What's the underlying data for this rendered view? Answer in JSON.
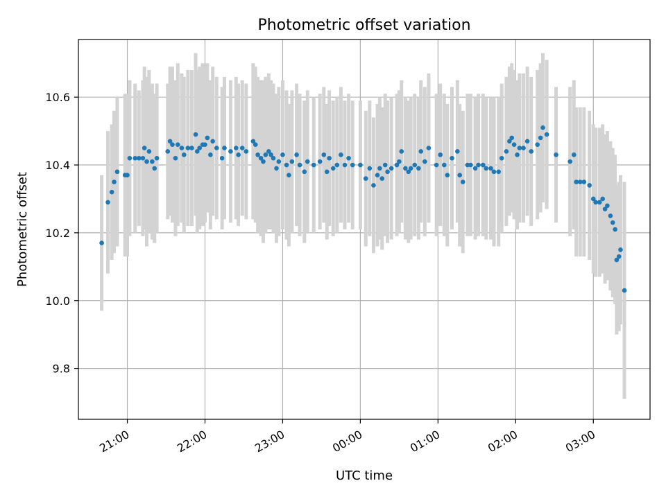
{
  "chart_data": {
    "type": "scatter",
    "title": "Photometric offset variation",
    "xlabel": "UTC time",
    "ylabel": "Photometric offset",
    "x_tick_labels": [
      "21:00",
      "22:00",
      "23:00",
      "00:00",
      "01:00",
      "02:00",
      "03:00"
    ],
    "y_tick_labels": [
      "9.8",
      "10.0",
      "10.2",
      "10.4",
      "10.6"
    ],
    "y_ticks": [
      9.8,
      10.0,
      10.2,
      10.4,
      10.6
    ],
    "ylim": [
      9.65,
      10.77
    ],
    "xlim_hours": [
      20.37,
      27.73
    ],
    "grid": true,
    "point_color": "#1f77b4",
    "errorbar_color": "#d3d3d3",
    "points": [
      [
        20.67,
        10.17,
        0.2
      ],
      [
        20.75,
        10.29,
        0.21
      ],
      [
        20.8,
        10.32,
        0.2
      ],
      [
        20.83,
        10.35,
        0.21
      ],
      [
        20.87,
        10.38,
        0.22
      ],
      [
        20.97,
        10.37,
        0.24
      ],
      [
        21.0,
        10.37,
        0.24
      ],
      [
        21.03,
        10.42,
        0.23
      ],
      [
        21.1,
        10.42,
        0.22
      ],
      [
        21.15,
        10.42,
        0.2
      ],
      [
        21.2,
        10.42,
        0.23
      ],
      [
        21.22,
        10.45,
        0.24
      ],
      [
        21.25,
        10.41,
        0.25
      ],
      [
        21.28,
        10.44,
        0.24
      ],
      [
        21.32,
        10.41,
        0.23
      ],
      [
        21.35,
        10.39,
        0.22
      ],
      [
        21.38,
        10.42,
        0.22
      ],
      [
        21.52,
        10.44,
        0.2
      ],
      [
        21.55,
        10.47,
        0.22
      ],
      [
        21.58,
        10.46,
        0.23
      ],
      [
        21.62,
        10.42,
        0.23
      ],
      [
        21.65,
        10.46,
        0.24
      ],
      [
        21.7,
        10.45,
        0.22
      ],
      [
        21.73,
        10.43,
        0.23
      ],
      [
        21.78,
        10.45,
        0.23
      ],
      [
        21.83,
        10.45,
        0.23
      ],
      [
        21.88,
        10.49,
        0.24
      ],
      [
        21.9,
        10.44,
        0.24
      ],
      [
        21.93,
        10.45,
        0.24
      ],
      [
        21.97,
        10.46,
        0.24
      ],
      [
        22.0,
        10.46,
        0.23
      ],
      [
        22.03,
        10.48,
        0.22
      ],
      [
        22.07,
        10.43,
        0.22
      ],
      [
        22.1,
        10.47,
        0.22
      ],
      [
        22.15,
        10.45,
        0.21
      ],
      [
        22.22,
        10.42,
        0.21
      ],
      [
        22.25,
        10.45,
        0.21
      ],
      [
        22.33,
        10.44,
        0.21
      ],
      [
        22.4,
        10.45,
        0.21
      ],
      [
        22.43,
        10.43,
        0.21
      ],
      [
        22.48,
        10.45,
        0.2
      ],
      [
        22.53,
        10.44,
        0.2
      ],
      [
        22.62,
        10.47,
        0.23
      ],
      [
        22.65,
        10.46,
        0.23
      ],
      [
        22.68,
        10.43,
        0.23
      ],
      [
        22.72,
        10.42,
        0.23
      ],
      [
        22.75,
        10.41,
        0.24
      ],
      [
        22.78,
        10.43,
        0.23
      ],
      [
        22.82,
        10.44,
        0.23
      ],
      [
        22.85,
        10.43,
        0.22
      ],
      [
        22.88,
        10.42,
        0.22
      ],
      [
        22.92,
        10.39,
        0.22
      ],
      [
        22.95,
        10.41,
        0.22
      ],
      [
        23.0,
        10.43,
        0.22
      ],
      [
        23.05,
        10.4,
        0.22
      ],
      [
        23.08,
        10.37,
        0.21
      ],
      [
        23.12,
        10.41,
        0.21
      ],
      [
        23.18,
        10.43,
        0.21
      ],
      [
        23.22,
        10.4,
        0.21
      ],
      [
        23.28,
        10.38,
        0.21
      ],
      [
        23.32,
        10.41,
        0.21
      ],
      [
        23.4,
        10.4,
        0.2
      ],
      [
        23.48,
        10.41,
        0.2
      ],
      [
        23.53,
        10.43,
        0.2
      ],
      [
        23.57,
        10.38,
        0.2
      ],
      [
        23.6,
        10.42,
        0.2
      ],
      [
        23.65,
        10.39,
        0.2
      ],
      [
        23.7,
        10.4,
        0.2
      ],
      [
        23.75,
        10.43,
        0.2
      ],
      [
        23.8,
        10.4,
        0.19
      ],
      [
        23.85,
        10.42,
        0.19
      ],
      [
        23.9,
        10.4,
        0.19
      ],
      [
        24.0,
        10.4,
        0.19
      ],
      [
        24.07,
        10.36,
        0.2
      ],
      [
        24.12,
        10.39,
        0.2
      ],
      [
        24.17,
        10.34,
        0.2
      ],
      [
        24.22,
        10.37,
        0.21
      ],
      [
        24.25,
        10.39,
        0.21
      ],
      [
        24.28,
        10.36,
        0.21
      ],
      [
        24.32,
        10.4,
        0.21
      ],
      [
        24.35,
        10.38,
        0.21
      ],
      [
        24.4,
        10.39,
        0.21
      ],
      [
        24.47,
        10.4,
        0.21
      ],
      [
        24.5,
        10.41,
        0.21
      ],
      [
        24.53,
        10.44,
        0.21
      ],
      [
        24.58,
        10.39,
        0.21
      ],
      [
        24.62,
        10.38,
        0.21
      ],
      [
        24.65,
        10.39,
        0.21
      ],
      [
        24.7,
        10.4,
        0.21
      ],
      [
        24.75,
        10.39,
        0.21
      ],
      [
        24.78,
        10.44,
        0.21
      ],
      [
        24.83,
        10.41,
        0.22
      ],
      [
        24.88,
        10.45,
        0.22
      ],
      [
        24.98,
        10.4,
        0.21
      ],
      [
        25.03,
        10.43,
        0.21
      ],
      [
        25.08,
        10.4,
        0.21
      ],
      [
        25.12,
        10.37,
        0.21
      ],
      [
        25.18,
        10.42,
        0.21
      ],
      [
        25.25,
        10.44,
        0.21
      ],
      [
        25.28,
        10.37,
        0.21
      ],
      [
        25.32,
        10.35,
        0.21
      ],
      [
        25.38,
        10.4,
        0.21
      ],
      [
        25.42,
        10.4,
        0.21
      ],
      [
        25.48,
        10.39,
        0.21
      ],
      [
        25.52,
        10.4,
        0.21
      ],
      [
        25.58,
        10.4,
        0.21
      ],
      [
        25.62,
        10.39,
        0.21
      ],
      [
        25.68,
        10.39,
        0.21
      ],
      [
        25.72,
        10.38,
        0.22
      ],
      [
        25.78,
        10.38,
        0.22
      ],
      [
        25.82,
        10.42,
        0.22
      ],
      [
        25.88,
        10.44,
        0.22
      ],
      [
        25.92,
        10.47,
        0.22
      ],
      [
        25.95,
        10.48,
        0.22
      ],
      [
        25.98,
        10.46,
        0.22
      ],
      [
        26.02,
        10.43,
        0.22
      ],
      [
        26.05,
        10.45,
        0.22
      ],
      [
        26.1,
        10.45,
        0.22
      ],
      [
        26.15,
        10.47,
        0.22
      ],
      [
        26.2,
        10.44,
        0.22
      ],
      [
        26.28,
        10.46,
        0.22
      ],
      [
        26.32,
        10.48,
        0.22
      ],
      [
        26.35,
        10.51,
        0.22
      ],
      [
        26.4,
        10.49,
        0.22
      ],
      [
        26.52,
        10.43,
        0.2
      ],
      [
        26.7,
        10.41,
        0.22
      ],
      [
        26.75,
        10.43,
        0.22
      ],
      [
        26.78,
        10.35,
        0.22
      ],
      [
        26.83,
        10.35,
        0.22
      ],
      [
        26.88,
        10.35,
        0.22
      ],
      [
        26.95,
        10.34,
        0.22
      ],
      [
        27.0,
        10.3,
        0.22
      ],
      [
        27.03,
        10.29,
        0.22
      ],
      [
        27.08,
        10.29,
        0.22
      ],
      [
        27.12,
        10.3,
        0.22
      ],
      [
        27.15,
        10.27,
        0.22
      ],
      [
        27.18,
        10.28,
        0.22
      ],
      [
        27.22,
        10.25,
        0.22
      ],
      [
        27.25,
        10.23,
        0.22
      ],
      [
        27.28,
        10.21,
        0.22
      ],
      [
        27.3,
        10.12,
        0.22
      ],
      [
        27.33,
        10.13,
        0.22
      ],
      [
        27.35,
        10.15,
        0.22
      ],
      [
        27.4,
        10.03,
        0.32
      ]
    ]
  }
}
